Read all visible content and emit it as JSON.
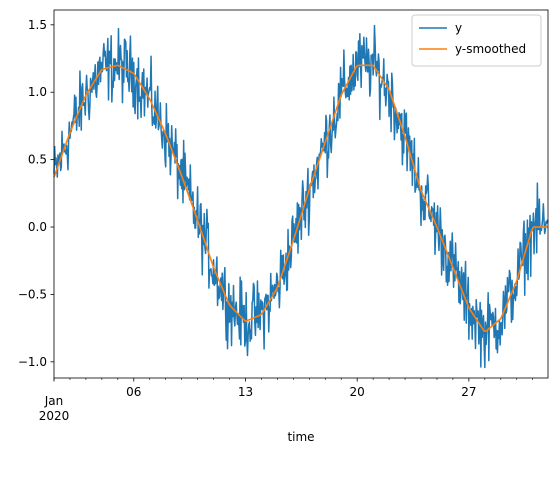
{
  "chart_data": {
    "type": "line",
    "xlabel": "time",
    "x_start": "2020-01-01",
    "x_end": "2020-01-31 23:00",
    "xlim": [
      "2020-01-01",
      "2020-01-31 23:00"
    ],
    "ylim": [
      -1.12,
      1.61
    ],
    "yticks": [
      -1.0,
      -0.5,
      0.0,
      0.5,
      1.0,
      1.5
    ],
    "ytick_labels": [
      "−1.0",
      "−0.5",
      "0.0",
      "0.5",
      "1.0",
      "1.5"
    ],
    "xticks": [
      {
        "date": "2020-01-06",
        "label": "06"
      },
      {
        "date": "2020-01-13",
        "label": "13"
      },
      {
        "date": "2020-01-20",
        "label": "20"
      },
      {
        "date": "2020-01-27",
        "label": "27"
      }
    ],
    "x_minor_tick_dates": [
      "2020-01-01",
      "2020-01-02",
      "2020-01-03",
      "2020-01-04",
      "2020-01-05",
      "2020-01-07",
      "2020-01-08",
      "2020-01-09",
      "2020-01-10",
      "2020-01-11",
      "2020-01-12",
      "2020-01-14",
      "2020-01-15",
      "2020-01-16",
      "2020-01-17",
      "2020-01-18",
      "2020-01-19",
      "2020-01-21",
      "2020-01-22",
      "2020-01-23",
      "2020-01-24",
      "2020-01-25",
      "2020-01-26",
      "2020-01-28",
      "2020-01-29",
      "2020-01-30",
      "2020-01-31"
    ],
    "month_label": "Jan",
    "year_label": "2020",
    "grid": false,
    "legend": "top-right",
    "series": [
      {
        "name": "y",
        "color": "#1f77b4",
        "x": [
          "2020-01-01",
          "2020-01-02",
          "2020-01-03",
          "2020-01-04",
          "2020-01-05",
          "2020-01-06",
          "2020-01-07",
          "2020-01-08",
          "2020-01-09",
          "2020-01-10",
          "2020-01-11",
          "2020-01-12",
          "2020-01-13",
          "2020-01-14",
          "2020-01-15",
          "2020-01-16",
          "2020-01-17",
          "2020-01-18",
          "2020-01-19",
          "2020-01-20",
          "2020-01-21",
          "2020-01-22",
          "2020-01-23",
          "2020-01-24",
          "2020-01-25",
          "2020-01-26",
          "2020-01-27",
          "2020-01-28",
          "2020-01-29",
          "2020-01-30",
          "2020-01-31"
        ],
        "y_smooth_component": [
          0.37,
          0.7,
          0.98,
          1.17,
          1.2,
          1.14,
          0.95,
          0.69,
          0.38,
          0.05,
          -0.3,
          -0.58,
          -0.7,
          -0.65,
          -0.45,
          -0.1,
          0.28,
          0.63,
          0.98,
          1.2,
          1.2,
          1.02,
          0.67,
          0.27,
          0.0,
          -0.3,
          -0.6,
          -0.78,
          -0.68,
          -0.4,
          0.0
        ],
        "noise_amplitude": 0.28,
        "points_per_day": 24
      },
      {
        "name": "y-smoothed",
        "color": "#ff7f0e",
        "x": [
          "2020-01-01",
          "2020-01-02",
          "2020-01-03",
          "2020-01-04",
          "2020-01-05",
          "2020-01-06",
          "2020-01-07",
          "2020-01-08",
          "2020-01-09",
          "2020-01-10",
          "2020-01-11",
          "2020-01-12",
          "2020-01-13",
          "2020-01-14",
          "2020-01-15",
          "2020-01-16",
          "2020-01-17",
          "2020-01-18",
          "2020-01-19",
          "2020-01-20",
          "2020-01-21",
          "2020-01-22",
          "2020-01-23",
          "2020-01-24",
          "2020-01-25",
          "2020-01-26",
          "2020-01-27",
          "2020-01-28",
          "2020-01-29",
          "2020-01-30",
          "2020-01-31"
        ],
        "y": [
          0.37,
          0.7,
          0.98,
          1.17,
          1.2,
          1.14,
          0.95,
          0.69,
          0.38,
          0.05,
          -0.3,
          -0.58,
          -0.7,
          -0.65,
          -0.45,
          -0.1,
          0.28,
          0.63,
          0.98,
          1.2,
          1.2,
          1.02,
          0.67,
          0.27,
          0.0,
          -0.3,
          -0.6,
          -0.78,
          -0.68,
          -0.4,
          0.0
        ]
      }
    ]
  }
}
